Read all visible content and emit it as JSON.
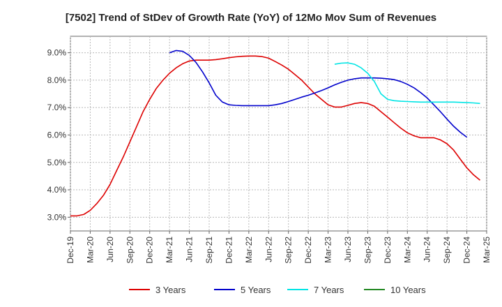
{
  "chart_data": {
    "type": "line",
    "title": "[7502]  Trend of StDev of Growth Rate (YoY) of 12Mo Mov Sum of Revenues",
    "xlabel": "",
    "ylabel": "",
    "ylim": [
      2.5,
      9.6
    ],
    "yticks": [
      3.0,
      4.0,
      5.0,
      6.0,
      7.0,
      8.0,
      9.0
    ],
    "ytick_labels": [
      "3.0%",
      "4.0%",
      "5.0%",
      "6.0%",
      "7.0%",
      "8.0%",
      "9.0%"
    ],
    "x_start": "Dec-19",
    "xtick_labels": [
      "Dec-19",
      "Mar-20",
      "Jun-20",
      "Sep-20",
      "Dec-20",
      "Mar-21",
      "Jun-21",
      "Sep-21",
      "Dec-21",
      "Mar-22",
      "Jun-22",
      "Sep-22",
      "Dec-22",
      "Mar-23",
      "Jun-23",
      "Sep-23",
      "Dec-23",
      "Mar-24",
      "Jun-24",
      "Sep-24",
      "Dec-24",
      "Mar-25"
    ],
    "x_months_range": [
      0,
      63
    ],
    "grid": true,
    "legend_position": "bottom",
    "series": [
      {
        "name": "3 Years",
        "color": "#dd0000",
        "start_month": 0,
        "values": [
          3.05,
          3.05,
          3.1,
          3.25,
          3.5,
          3.8,
          4.2,
          4.7,
          5.2,
          5.75,
          6.3,
          6.85,
          7.3,
          7.7,
          8.0,
          8.25,
          8.45,
          8.6,
          8.7,
          8.73,
          8.73,
          8.73,
          8.75,
          8.78,
          8.82,
          8.85,
          8.87,
          8.88,
          8.88,
          8.86,
          8.8,
          8.68,
          8.55,
          8.4,
          8.2,
          8.0,
          7.75,
          7.5,
          7.3,
          7.1,
          7.02,
          7.02,
          7.08,
          7.15,
          7.18,
          7.15,
          7.05,
          6.85,
          6.65,
          6.45,
          6.25,
          6.08,
          5.97,
          5.9,
          5.9,
          5.9,
          5.82,
          5.68,
          5.45,
          5.12,
          4.8,
          4.55,
          4.35
        ]
      },
      {
        "name": "5 Years",
        "color": "#0000cc",
        "start_month": 15,
        "values": [
          9.0,
          9.08,
          9.05,
          8.9,
          8.65,
          8.3,
          7.9,
          7.45,
          7.2,
          7.1,
          7.08,
          7.07,
          7.07,
          7.07,
          7.07,
          7.07,
          7.1,
          7.15,
          7.22,
          7.3,
          7.38,
          7.45,
          7.53,
          7.62,
          7.72,
          7.83,
          7.92,
          8.0,
          8.05,
          8.08,
          8.08,
          8.08,
          8.07,
          8.05,
          8.02,
          7.95,
          7.85,
          7.72,
          7.55,
          7.35,
          7.1,
          6.85,
          6.58,
          6.32,
          6.1,
          5.92
        ]
      },
      {
        "name": "7 Years",
        "color": "#00e5e5",
        "start_month": 40,
        "values": [
          8.58,
          8.62,
          8.63,
          8.58,
          8.45,
          8.25,
          7.95,
          7.5,
          7.3,
          7.25,
          7.23,
          7.22,
          7.21,
          7.2,
          7.2,
          7.2,
          7.2,
          7.2,
          7.2,
          7.19,
          7.18,
          7.17,
          7.15
        ]
      },
      {
        "name": "10 Years",
        "color": "#228822",
        "start_month": 63,
        "values": []
      }
    ]
  }
}
